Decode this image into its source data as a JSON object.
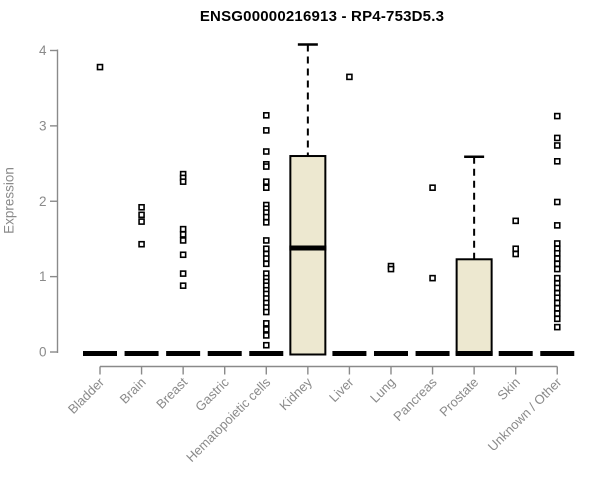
{
  "chart_data": {
    "type": "boxplot",
    "title": "ENSG00000216913 - RP4-753D5.3",
    "ylabel": "Expression",
    "xlabel": "",
    "ylim": [
      0,
      4
    ],
    "yticks": [
      0,
      1,
      2,
      3,
      4
    ],
    "grid": false,
    "legend": "none",
    "box_fill_color": "#ede8d0",
    "box_line_color": "#000000",
    "axis_color": "#8a8a8a",
    "categories": [
      {
        "label": "Bladder",
        "q1": 0,
        "median": 0,
        "q3": 0,
        "whisker_low": 0,
        "whisker_high": 0,
        "outliers": [
          3.78
        ]
      },
      {
        "label": "Brain",
        "q1": 0,
        "median": 0,
        "q3": 0,
        "whisker_low": 0,
        "whisker_high": 0,
        "outliers": [
          1.92,
          1.82,
          1.73,
          1.43
        ]
      },
      {
        "label": "Breast",
        "q1": 0,
        "median": 0,
        "q3": 0,
        "whisker_low": 0,
        "whisker_high": 0,
        "outliers": [
          2.36,
          2.31,
          2.26,
          1.63,
          1.56,
          1.48,
          1.29,
          1.04,
          0.88
        ]
      },
      {
        "label": "Gastric",
        "q1": 0,
        "median": 0,
        "q3": 0,
        "whisker_low": 0,
        "whisker_high": 0,
        "outliers": []
      },
      {
        "label": "Hematopoietic cells",
        "q1": 0,
        "median": 0,
        "q3": 0,
        "whisker_low": 0,
        "whisker_high": 0,
        "outliers": [
          3.14,
          2.94,
          2.66,
          2.49,
          2.46,
          2.26,
          2.18,
          1.95,
          1.9,
          1.85,
          1.79,
          1.72,
          1.48,
          1.37,
          1.3,
          1.24,
          1.17,
          1.04,
          0.98,
          0.93,
          0.88,
          0.82,
          0.77,
          0.71,
          0.65,
          0.59,
          0.53,
          0.38,
          0.3,
          0.22,
          0.09
        ]
      },
      {
        "label": "Kidney",
        "q1": 0,
        "median": 1.38,
        "q3": 2.6,
        "whisker_low": 0,
        "whisker_high": 4.08,
        "outliers": []
      },
      {
        "label": "Liver",
        "q1": 0,
        "median": 0,
        "q3": 0,
        "whisker_low": 0,
        "whisker_high": 0,
        "outliers": [
          3.65
        ]
      },
      {
        "label": "Lung",
        "q1": 0,
        "median": 0,
        "q3": 0,
        "whisker_low": 0,
        "whisker_high": 0,
        "outliers": [
          1.14,
          1.1
        ]
      },
      {
        "label": "Pancreas",
        "q1": 0,
        "median": 0,
        "q3": 0,
        "whisker_low": 0,
        "whisker_high": 0,
        "outliers": [
          2.18,
          0.98
        ]
      },
      {
        "label": "Prostate",
        "q1": 0,
        "median": 0,
        "q3": 1.23,
        "whisker_low": 0,
        "whisker_high": 2.59,
        "outliers": []
      },
      {
        "label": "Skin",
        "q1": 0,
        "median": 0,
        "q3": 0,
        "whisker_low": 0,
        "whisker_high": 0,
        "outliers": [
          1.74,
          1.37,
          1.3
        ]
      },
      {
        "label": "Unknown / Other",
        "q1": 0,
        "median": 0,
        "q3": 0,
        "whisker_low": 0,
        "whisker_high": 0,
        "outliers": [
          3.13,
          2.84,
          2.74,
          2.53,
          1.99,
          1.68,
          1.44,
          1.37,
          1.31,
          1.24,
          1.17,
          1.1,
          0.98,
          0.91,
          0.85,
          0.78,
          0.72,
          0.65,
          0.58,
          0.51,
          0.44,
          0.33
        ]
      }
    ]
  }
}
